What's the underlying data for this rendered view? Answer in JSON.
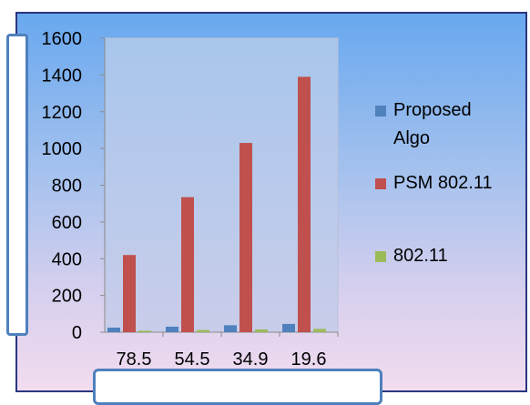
{
  "chart_data": {
    "type": "bar",
    "categories": [
      "78.5",
      "54.5",
      "34.9",
      "19.6"
    ],
    "series": [
      {
        "name": "Proposed Algo",
        "color": "#4f81bd",
        "values": [
          25,
          30,
          38,
          45
        ]
      },
      {
        "name": "PSM 802.11",
        "color": "#c0504d",
        "values": [
          420,
          735,
          1030,
          1390
        ]
      },
      {
        "name": "802.11",
        "color": "#9bbb59",
        "values": [
          8,
          12,
          15,
          18
        ]
      }
    ],
    "y_ticks": [
      "0",
      "200",
      "400",
      "600",
      "800",
      "1000",
      "1200",
      "1400",
      "1600"
    ],
    "ylim": [
      0,
      1600
    ],
    "title": "",
    "xlabel": "",
    "ylabel": "",
    "legend": "right",
    "grid": false
  }
}
